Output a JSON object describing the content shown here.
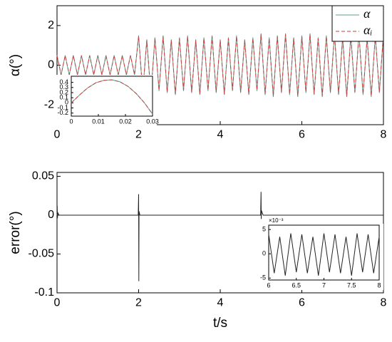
{
  "chart_data": [
    {
      "type": "line",
      "ylabel": "α(°)",
      "legend": "upper right",
      "xlim": [
        0,
        8
      ],
      "ylim": [
        -3,
        3
      ],
      "xticks": [
        0,
        2,
        4,
        6,
        8
      ],
      "yticks": [
        -2,
        0,
        2
      ],
      "x": [
        0,
        0.1,
        0.2,
        0.3,
        0.4,
        0.5,
        0.6,
        0.7,
        0.8,
        0.9,
        1,
        1.1,
        1.2,
        1.3,
        1.4,
        1.5,
        1.6,
        1.7,
        1.8,
        1.9,
        2,
        2.1,
        2.2,
        2.3,
        2.4,
        2.5,
        2.6,
        2.7,
        2.8,
        2.9,
        3,
        3.1,
        3.2,
        3.3,
        3.4,
        3.5,
        3.6,
        3.7,
        3.8,
        3.9,
        4,
        4.1,
        4.2,
        4.3,
        4.4,
        4.5,
        4.6,
        4.7,
        4.8,
        4.9,
        5,
        5.1,
        5.2,
        5.3,
        5.4,
        5.5,
        5.6,
        5.7,
        5.8,
        5.9,
        6,
        6.1,
        6.2,
        6.3,
        6.4,
        6.5,
        6.6,
        6.7,
        6.8,
        6.9,
        7,
        7.1,
        7.2,
        7.3,
        7.4,
        7.5,
        7.6,
        7.7,
        7.8,
        7.9,
        8
      ],
      "series": [
        {
          "name": "α",
          "color": "#5f9e8f",
          "dash": false,
          "values": [
            0.5,
            -0.5,
            0.5,
            -0.5,
            0.5,
            -0.5,
            0.5,
            -0.5,
            0.5,
            -0.5,
            0.5,
            -0.5,
            0.5,
            -0.5,
            0.5,
            -0.5,
            0.5,
            -0.5,
            0.5,
            -0.5,
            1.5,
            -1.4,
            1.3,
            -1.5,
            1.4,
            -1.3,
            1.5,
            -1.4,
            1.3,
            -1.5,
            1.4,
            -1.3,
            1.5,
            -1.4,
            1.3,
            -1.5,
            1.4,
            -1.3,
            1.5,
            -1.4,
            1.3,
            -1.5,
            1.4,
            -1.3,
            1.5,
            -1.4,
            1.3,
            -1.5,
            1.4,
            -1.3,
            1.6,
            -1.5,
            1.4,
            -1.6,
            1.5,
            -1.4,
            1.6,
            -1.5,
            1.4,
            -1.6,
            1.5,
            -1.4,
            1.6,
            -1.5,
            1.4,
            -1.6,
            1.5,
            -1.4,
            1.6,
            -1.5,
            1.4,
            -1.6,
            1.5,
            -1.4,
            1.6,
            -1.5,
            1.4,
            -1.6,
            1.5,
            -1.4,
            1.6
          ]
        },
        {
          "name": "αᵢ",
          "color": "#d03a3a",
          "dash": true,
          "values": [
            0.48,
            -0.48,
            0.48,
            -0.48,
            0.48,
            -0.48,
            0.48,
            -0.48,
            0.48,
            -0.48,
            0.48,
            -0.48,
            0.48,
            -0.48,
            0.48,
            -0.48,
            0.48,
            -0.48,
            0.48,
            -0.48,
            1.45,
            -1.35,
            1.25,
            -1.45,
            1.35,
            -1.25,
            1.45,
            -1.35,
            1.25,
            -1.45,
            1.35,
            -1.25,
            1.45,
            -1.35,
            1.25,
            -1.45,
            1.35,
            -1.25,
            1.45,
            -1.35,
            1.25,
            -1.45,
            1.35,
            -1.25,
            1.45,
            -1.35,
            1.25,
            -1.45,
            1.35,
            -1.25,
            1.55,
            -1.45,
            1.35,
            -1.55,
            1.45,
            -1.35,
            1.55,
            -1.45,
            1.35,
            -1.55,
            1.45,
            -1.35,
            1.55,
            -1.45,
            1.35,
            -1.55,
            1.45,
            -1.35,
            1.55,
            -1.45,
            1.35,
            -1.55,
            1.45,
            -1.35,
            1.55,
            -1.45,
            1.35,
            -1.55,
            1.45,
            -1.35,
            1.55
          ]
        }
      ]
    },
    {
      "type": "line",
      "xlim": [
        0,
        0.03
      ],
      "ylim": [
        -0.26,
        0.52
      ],
      "xticks": [
        0,
        0.01,
        0.02,
        0.03
      ],
      "yticks": [
        -0.2,
        -0.1,
        0,
        0.1,
        0.2,
        0.3,
        0.4
      ],
      "x": [
        0,
        0.003,
        0.006,
        0.009,
        0.012,
        0.015,
        0.018,
        0.021,
        0.024,
        0.027,
        0.03
      ],
      "series": [
        {
          "color": "#5f9e8f",
          "dash": false,
          "values": [
            0,
            0.15,
            0.29,
            0.39,
            0.44,
            0.45,
            0.41,
            0.32,
            0.18,
            0,
            -0.22
          ]
        },
        {
          "color": "#d03a3a",
          "dash": true,
          "values": [
            0,
            0.15,
            0.29,
            0.39,
            0.44,
            0.45,
            0.41,
            0.32,
            0.18,
            0,
            -0.22
          ]
        }
      ]
    },
    {
      "type": "line",
      "ylabel": "error(°)",
      "xlabel": "t/s",
      "xlim": [
        0,
        8
      ],
      "ylim": [
        -0.1,
        0.055
      ],
      "xticks": [
        0,
        2,
        4,
        6,
        8
      ],
      "yticks": [
        -0.1,
        -0.05,
        0,
        0.05
      ],
      "x": [
        0,
        0.005,
        0.01,
        0.02,
        0.05,
        1.99,
        2,
        2.005,
        2.01,
        2.03,
        4.99,
        5,
        5.005,
        5.01,
        5.05,
        8
      ],
      "series": [
        {
          "color": "#222222",
          "dash": false,
          "values": [
            0,
            0.012,
            -0.004,
            0.003,
            0,
            0,
            0.027,
            -0.085,
            0.005,
            0,
            0,
            0.03,
            -0.005,
            0.006,
            0,
            0
          ]
        }
      ]
    },
    {
      "type": "line",
      "multiplier": "×10⁻³",
      "xlim": [
        6,
        8
      ],
      "ylim": [
        -0.0054,
        0.0059
      ],
      "xticks": [
        6,
        6.5,
        7,
        7.5,
        8
      ],
      "yticks": [
        {
          "value": -0.005,
          "label": "-5"
        },
        0,
        {
          "value": 0.005,
          "label": "5"
        }
      ],
      "x": [
        6,
        6.1,
        6.2,
        6.3,
        6.4,
        6.5,
        6.6,
        6.7,
        6.8,
        6.9,
        7,
        7.1,
        7.2,
        7.3,
        7.4,
        7.5,
        7.6,
        7.7,
        7.8,
        7.9,
        8
      ],
      "series": [
        {
          "color": "#222222",
          "dash": false,
          "values": [
            0.004,
            -0.004,
            0.0035,
            -0.0045,
            0.0042,
            -0.0038,
            0.004,
            -0.004,
            0.0035,
            -0.0045,
            0.0042,
            -0.0038,
            0.004,
            -0.004,
            0.0035,
            -0.0045,
            0.0042,
            -0.0038,
            0.004,
            -0.004,
            0.0035
          ]
        }
      ]
    }
  ]
}
